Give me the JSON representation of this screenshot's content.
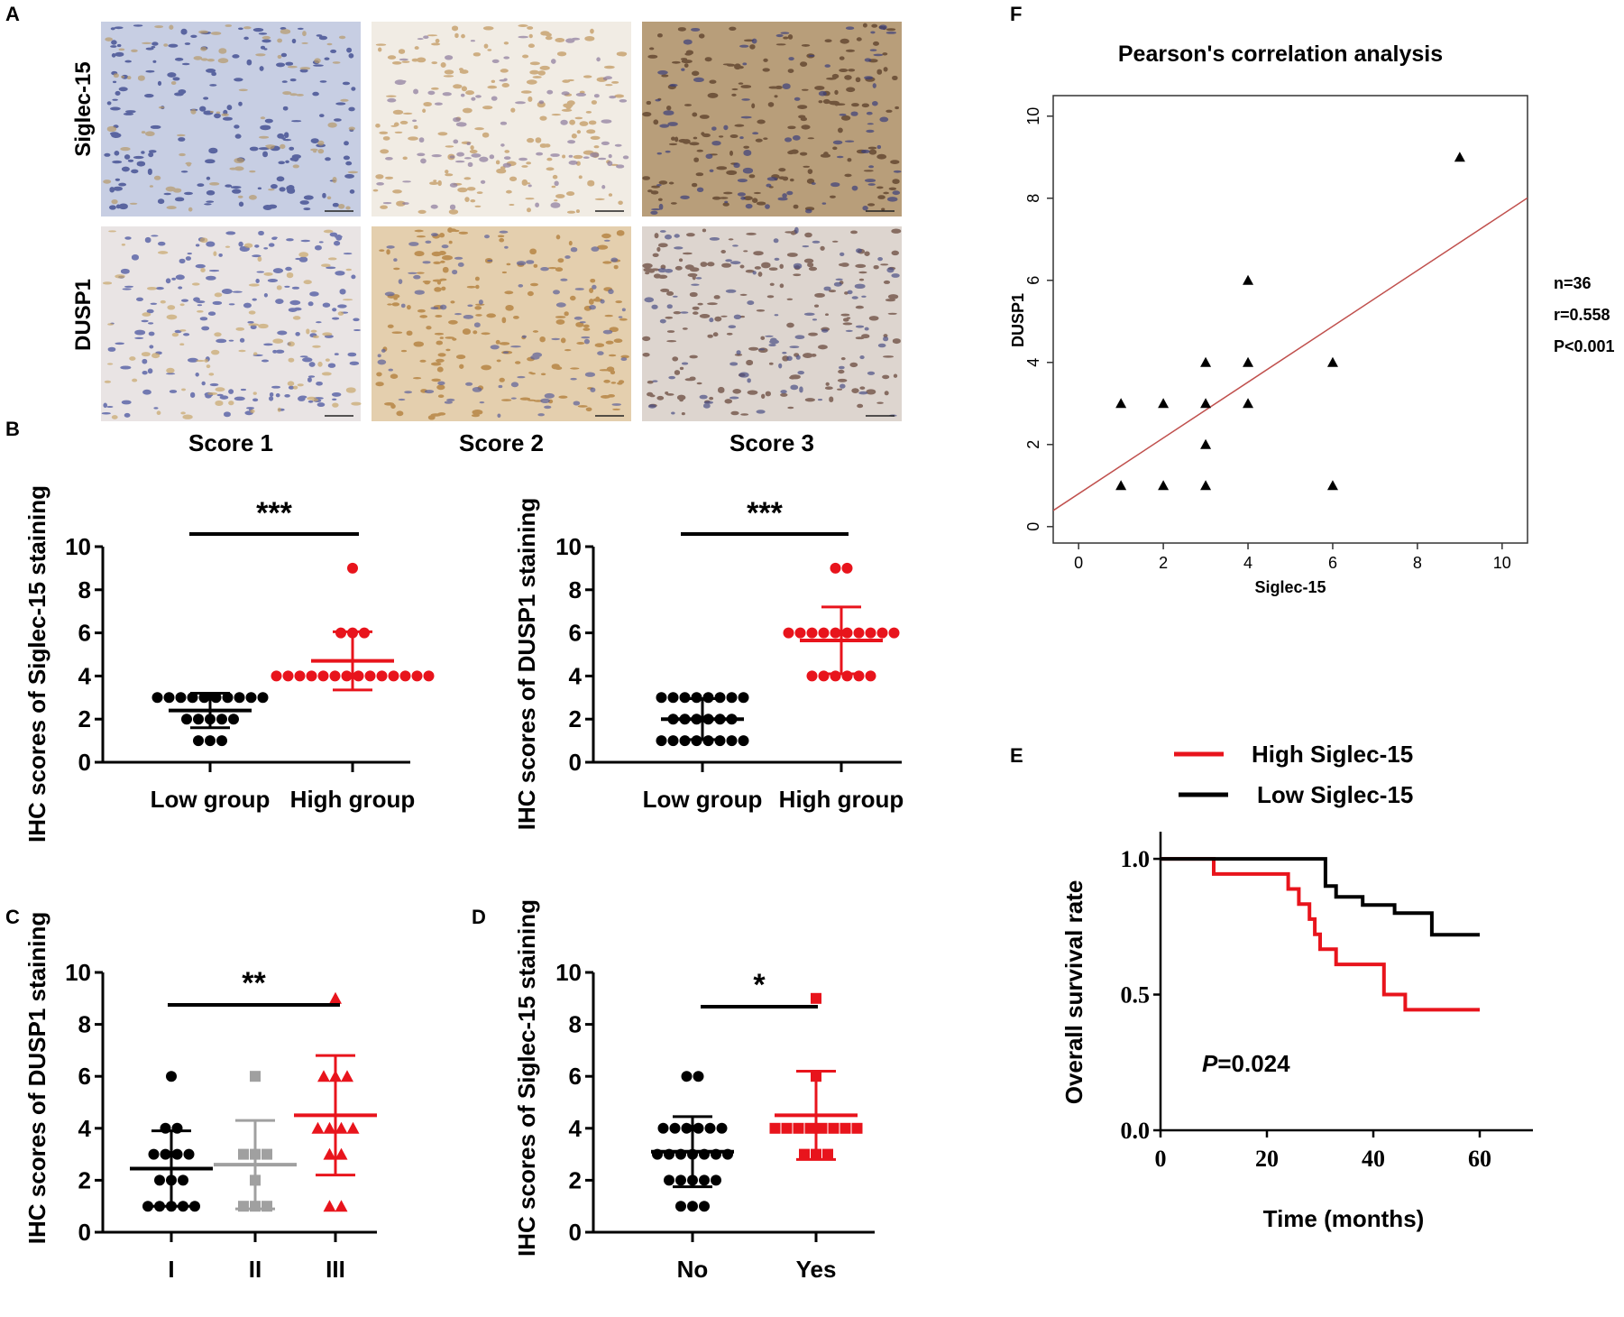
{
  "panel_labels": {
    "A": "A",
    "B": "B",
    "C": "C",
    "D": "D",
    "E": "E",
    "F": "F"
  },
  "panel_a": {
    "row_labels": [
      "Siglec-15",
      "DUSP1"
    ],
    "column_labels": [
      "Score 1",
      "Score 2",
      "Score 3"
    ],
    "tiles": [
      {
        "row": 0,
        "col": 0,
        "base": "#c7cee3",
        "dot": "#35428a",
        "dot2": "#b79a6a"
      },
      {
        "row": 0,
        "col": 1,
        "base": "#f1ece4",
        "dot": "#c29a62",
        "dot2": "#8c7a9c"
      },
      {
        "row": 0,
        "col": 2,
        "base": "#b89e7a",
        "dot": "#5a3c28",
        "dot2": "#3a3f7c"
      },
      {
        "row": 1,
        "col": 0,
        "base": "#e9e4e4",
        "dot": "#4a55a0",
        "dot2": "#c7a66b"
      },
      {
        "row": 1,
        "col": 1,
        "base": "#e4cfae",
        "dot": "#b07b36",
        "dot2": "#5b5f9a"
      },
      {
        "row": 1,
        "col": 2,
        "base": "#ddd5cf",
        "dot": "#6a4a3e",
        "dot2": "#4a4f85"
      }
    ]
  },
  "chart_data": [
    {
      "panel": "B-left",
      "type": "scatter",
      "ylabel": "IHC scores of Siglec-15 staining",
      "ylim": [
        0,
        10
      ],
      "yticks": [
        0,
        2,
        4,
        6,
        8,
        10
      ],
      "categories": [
        "Low group",
        "High group"
      ],
      "significance": "***",
      "groups": [
        {
          "name": "Low group",
          "color": "#000000",
          "marker": "circle",
          "mean": 2.4,
          "sd": 0.8,
          "values": [
            3,
            3,
            3,
            3,
            3,
            3,
            3,
            3,
            3,
            3,
            2,
            2,
            2,
            2,
            2,
            1,
            1,
            1
          ]
        },
        {
          "name": "High group",
          "color": "#e8141c",
          "marker": "circle",
          "mean": 4.7,
          "sd": 1.35,
          "values": [
            9,
            6,
            6,
            6,
            4,
            4,
            4,
            4,
            4,
            4,
            4,
            4,
            4,
            4,
            4,
            4,
            4,
            4
          ]
        }
      ]
    },
    {
      "panel": "B-right",
      "type": "scatter",
      "ylabel": "IHC scores of DUSP1 staining",
      "ylim": [
        0,
        10
      ],
      "yticks": [
        0,
        2,
        4,
        6,
        8,
        10
      ],
      "categories": [
        "Low group",
        "High group"
      ],
      "significance": "***",
      "groups": [
        {
          "name": "Low group",
          "color": "#000000",
          "marker": "circle",
          "mean": 2.0,
          "sd": 0.95,
          "values": [
            3,
            3,
            3,
            3,
            3,
            3,
            3,
            3,
            2,
            2,
            2,
            2,
            2,
            2,
            1,
            1,
            1,
            1,
            1,
            1,
            1,
            1
          ]
        },
        {
          "name": "High group",
          "color": "#e8141c",
          "marker": "circle",
          "mean": 5.65,
          "sd": 1.55,
          "values": [
            9,
            9,
            6,
            6,
            6,
            6,
            6,
            6,
            6,
            6,
            6,
            6,
            4,
            4,
            4,
            4,
            4,
            4
          ]
        }
      ]
    },
    {
      "panel": "C",
      "type": "scatter",
      "ylabel": "IHC scores of DUSP1 staining",
      "ylim": [
        0,
        10
      ],
      "yticks": [
        0,
        2,
        4,
        6,
        8,
        10
      ],
      "categories": [
        "I",
        "II",
        "III"
      ],
      "significance": "**",
      "significance_span": [
        0,
        2
      ],
      "groups": [
        {
          "name": "I",
          "color": "#000000",
          "marker": "circle",
          "mean": 2.45,
          "sd": 1.45,
          "values": [
            6,
            4,
            4,
            3,
            3,
            3,
            3,
            2,
            2,
            2,
            1,
            1,
            1,
            1,
            1
          ]
        },
        {
          "name": "II",
          "color": "#a0a0a0",
          "marker": "square",
          "mean": 2.6,
          "sd": 1.7,
          "values": [
            6,
            3,
            3,
            3,
            2,
            1,
            1,
            1
          ]
        },
        {
          "name": "III",
          "color": "#e8141c",
          "marker": "triangle",
          "mean": 4.5,
          "sd": 2.3,
          "values": [
            9,
            6,
            6,
            6,
            4,
            4,
            4,
            4,
            3,
            3,
            1,
            1
          ]
        }
      ]
    },
    {
      "panel": "D",
      "type": "scatter",
      "ylabel": "IHC scores of Siglec-15 staining",
      "ylim": [
        0,
        10
      ],
      "yticks": [
        0,
        2,
        4,
        6,
        8,
        10
      ],
      "categories": [
        "No",
        "Yes"
      ],
      "significance": "*",
      "groups": [
        {
          "name": "No",
          "color": "#000000",
          "marker": "circle",
          "mean": 3.1,
          "sd": 1.35,
          "values": [
            6,
            6,
            4,
            4,
            4,
            4,
            4,
            4,
            3,
            3,
            3,
            3,
            3,
            3,
            3,
            2,
            2,
            2,
            2,
            2,
            1,
            1,
            1
          ]
        },
        {
          "name": "Yes",
          "color": "#e8141c",
          "marker": "square",
          "mean": 4.5,
          "sd": 1.7,
          "values": [
            9,
            6,
            4,
            4,
            4,
            4,
            4,
            4,
            4,
            4,
            3,
            3,
            3
          ]
        }
      ]
    },
    {
      "panel": "F",
      "type": "scatter",
      "title": "Pearson's correlation analysis",
      "xlabel": "Siglec-15",
      "ylabel": "DUSP1",
      "xlim": [
        -0.6,
        10.6
      ],
      "ylim": [
        -0.4,
        10.5
      ],
      "xticks": [
        0,
        2,
        4,
        6,
        8,
        10
      ],
      "yticks": [
        0,
        2,
        4,
        6,
        8,
        10
      ],
      "points": [
        [
          1,
          3
        ],
        [
          2,
          3
        ],
        [
          3,
          3
        ],
        [
          4,
          3
        ],
        [
          1,
          1
        ],
        [
          2,
          1
        ],
        [
          3,
          1
        ],
        [
          3,
          2
        ],
        [
          3,
          4
        ],
        [
          4,
          4
        ],
        [
          4,
          6
        ],
        [
          6,
          4
        ],
        [
          6,
          1
        ],
        [
          9,
          9
        ]
      ],
      "fit_line": {
        "intercept": 0.8,
        "slope": 0.68,
        "color": "#c0504d"
      },
      "annotations": [
        "n=36",
        "r=0.558",
        "P<0.001"
      ]
    },
    {
      "panel": "E",
      "type": "line",
      "xlabel": "Time (months)",
      "ylabel": "Overall survival rate",
      "xlim": [
        0,
        70
      ],
      "ylim": [
        0,
        1.1
      ],
      "xticks": [
        0,
        20,
        40,
        60
      ],
      "yticks": [
        0.0,
        0.5,
        1.0
      ],
      "ytick_labels": [
        "0.0",
        "0.5",
        "1.0"
      ],
      "p_value_prefix": "P",
      "p_value": "=0.024",
      "series": [
        {
          "name": "High Siglec-15",
          "color": "#e8141c",
          "x": [
            0,
            10,
            10,
            24,
            24,
            26,
            26,
            28,
            28,
            29,
            29,
            30,
            30,
            33,
            33,
            42,
            42,
            46,
            46,
            60
          ],
          "y": [
            1,
            1,
            0.944,
            0.944,
            0.889,
            0.889,
            0.833,
            0.833,
            0.778,
            0.778,
            0.722,
            0.722,
            0.667,
            0.667,
            0.611,
            0.611,
            0.5,
            0.5,
            0.444,
            0.444
          ]
        },
        {
          "name": "Low Siglec-15",
          "color": "#000000",
          "x": [
            0,
            31,
            31,
            33,
            33,
            38,
            38,
            44,
            44,
            51,
            51,
            60
          ],
          "y": [
            1,
            1,
            0.9,
            0.9,
            0.86,
            0.86,
            0.83,
            0.83,
            0.8,
            0.8,
            0.72,
            0.72
          ]
        }
      ]
    }
  ]
}
